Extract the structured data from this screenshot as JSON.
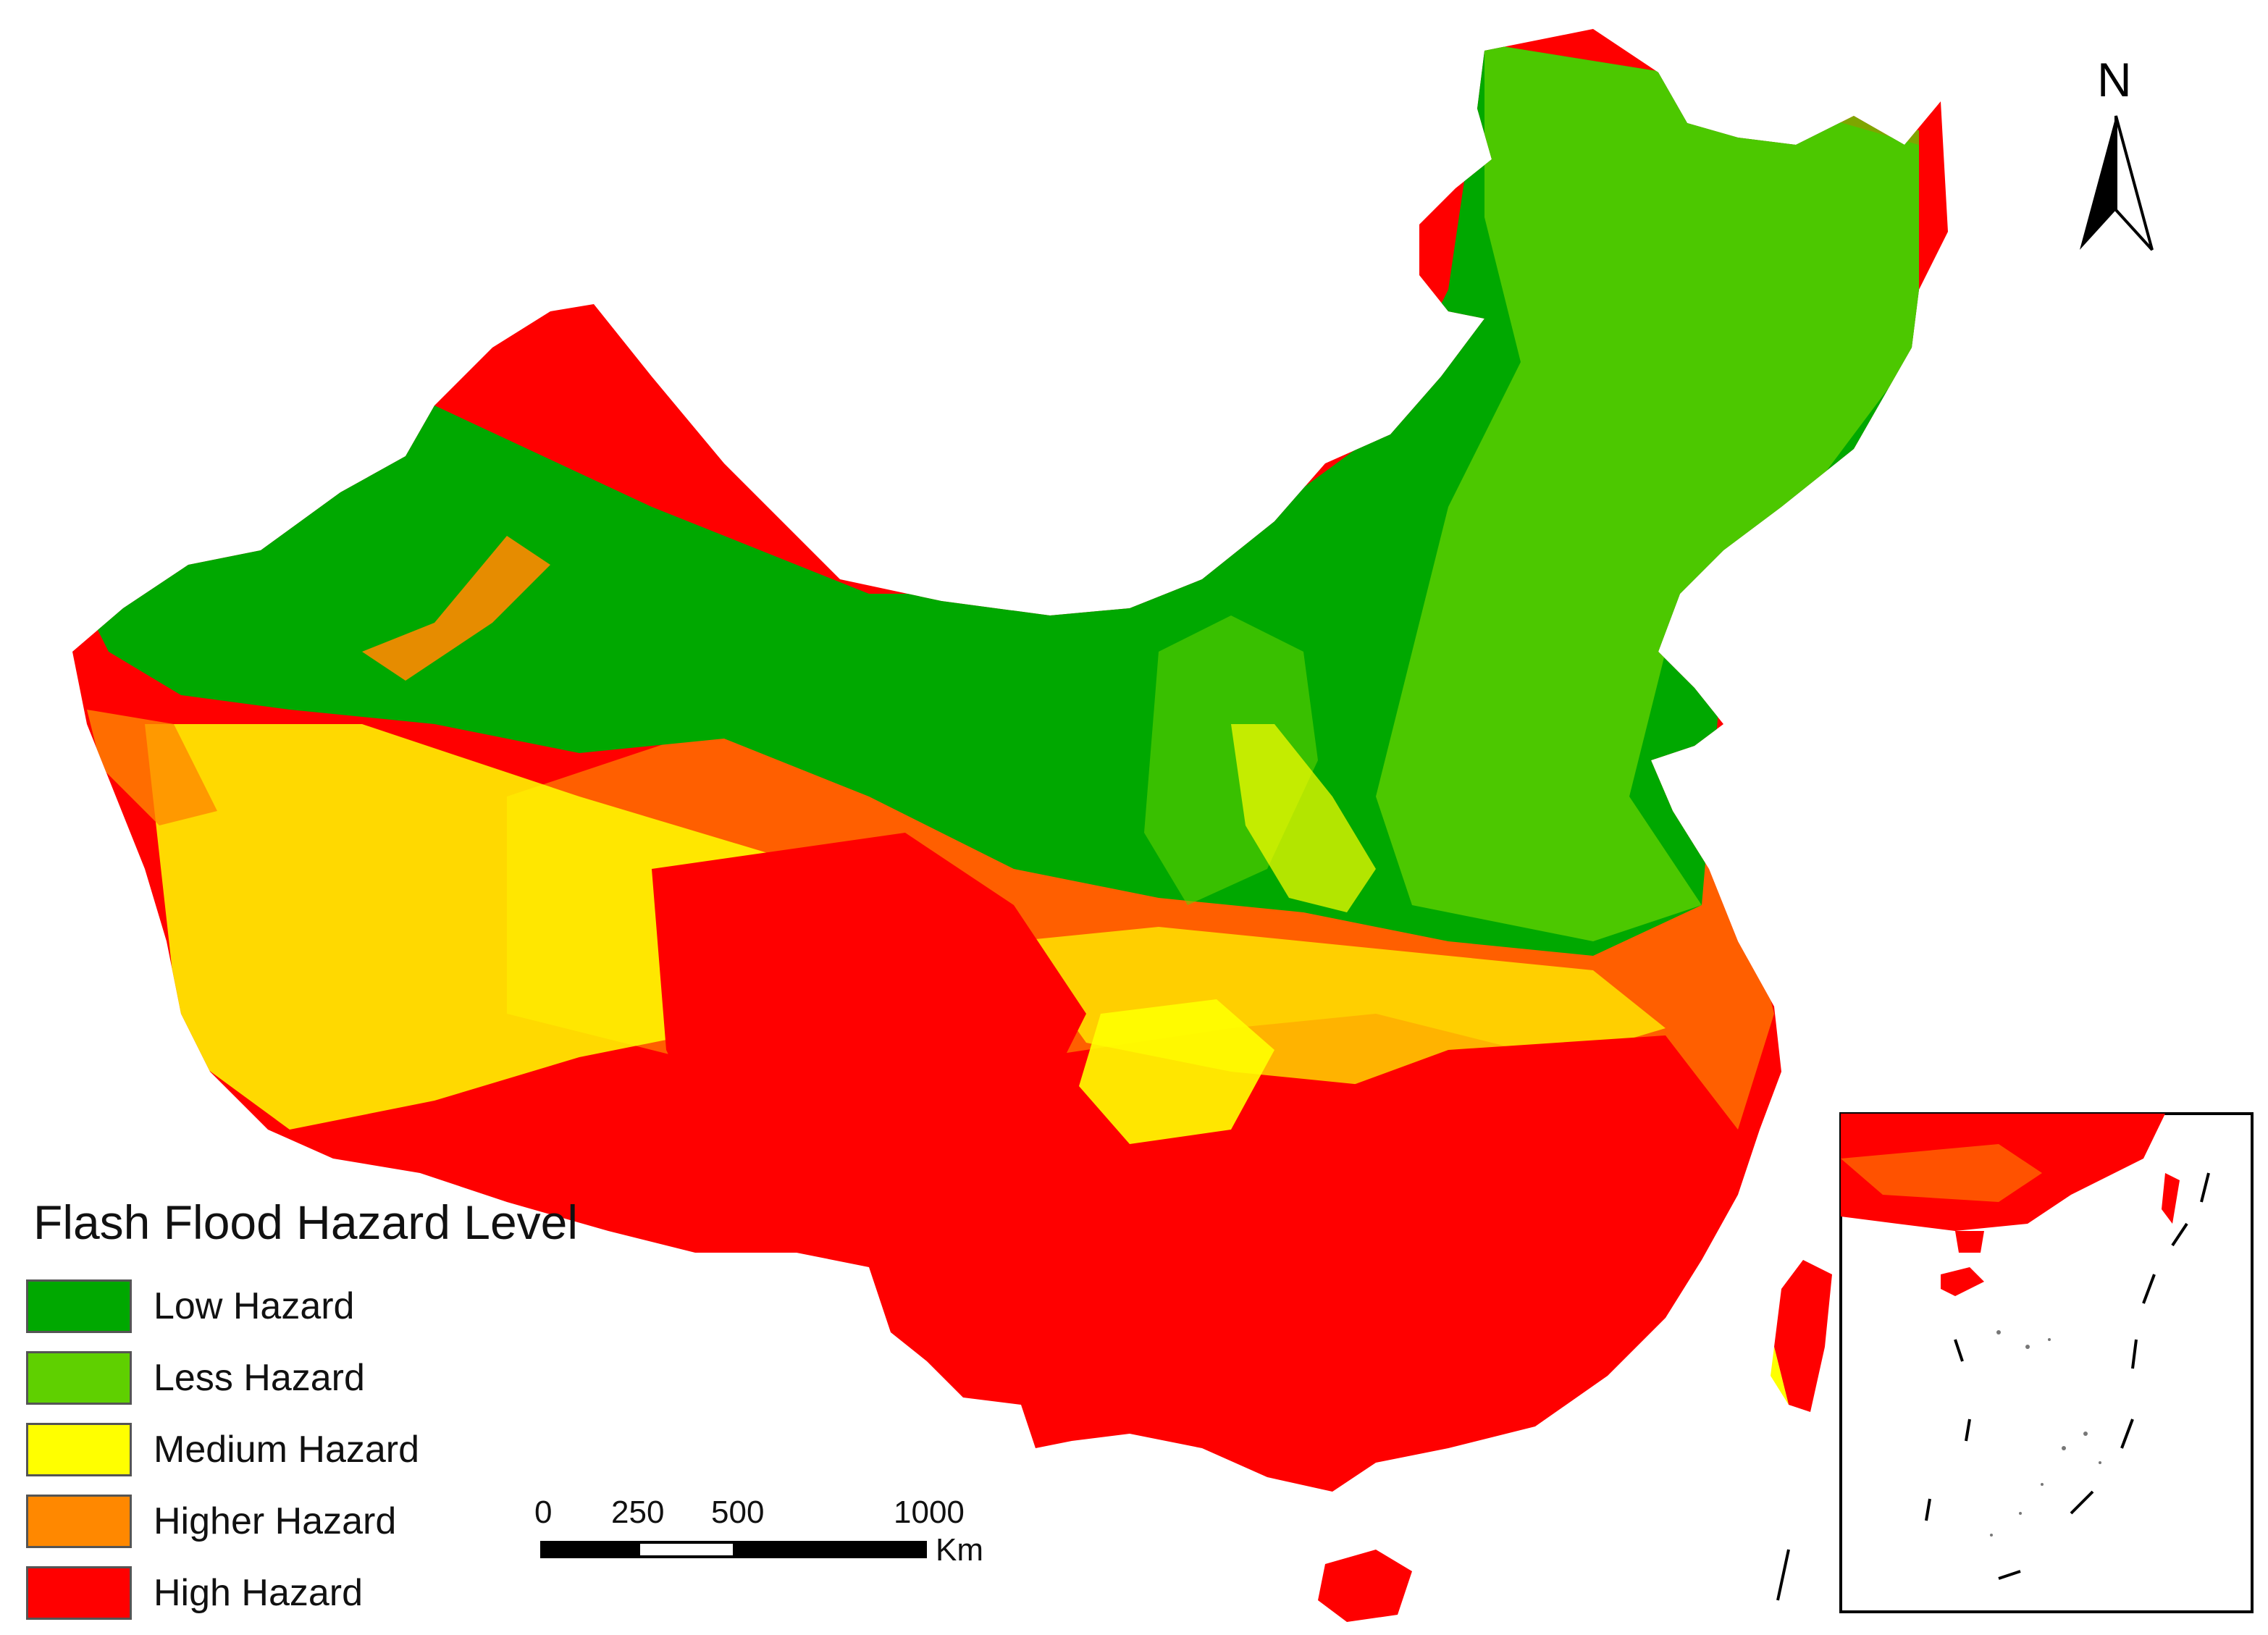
{
  "legend": {
    "title": "Flash Flood Hazard Level",
    "items": [
      {
        "label": "Low Hazard",
        "color": "#00a800"
      },
      {
        "label": "Less Hazard",
        "color": "#5fd000"
      },
      {
        "label": "Medium Hazard",
        "color": "#ffff00"
      },
      {
        "label": "Higher Hazard",
        "color": "#ff8800"
      },
      {
        "label": "High Hazard",
        "color": "#ff0000"
      }
    ]
  },
  "scale_bar": {
    "ticks": [
      "0",
      "250",
      "500",
      "1000"
    ],
    "unit": "Km"
  },
  "north_arrow": {
    "label": "N",
    "icon": "north-arrow-icon"
  },
  "inset": {
    "icon": "south-china-sea-inset"
  }
}
